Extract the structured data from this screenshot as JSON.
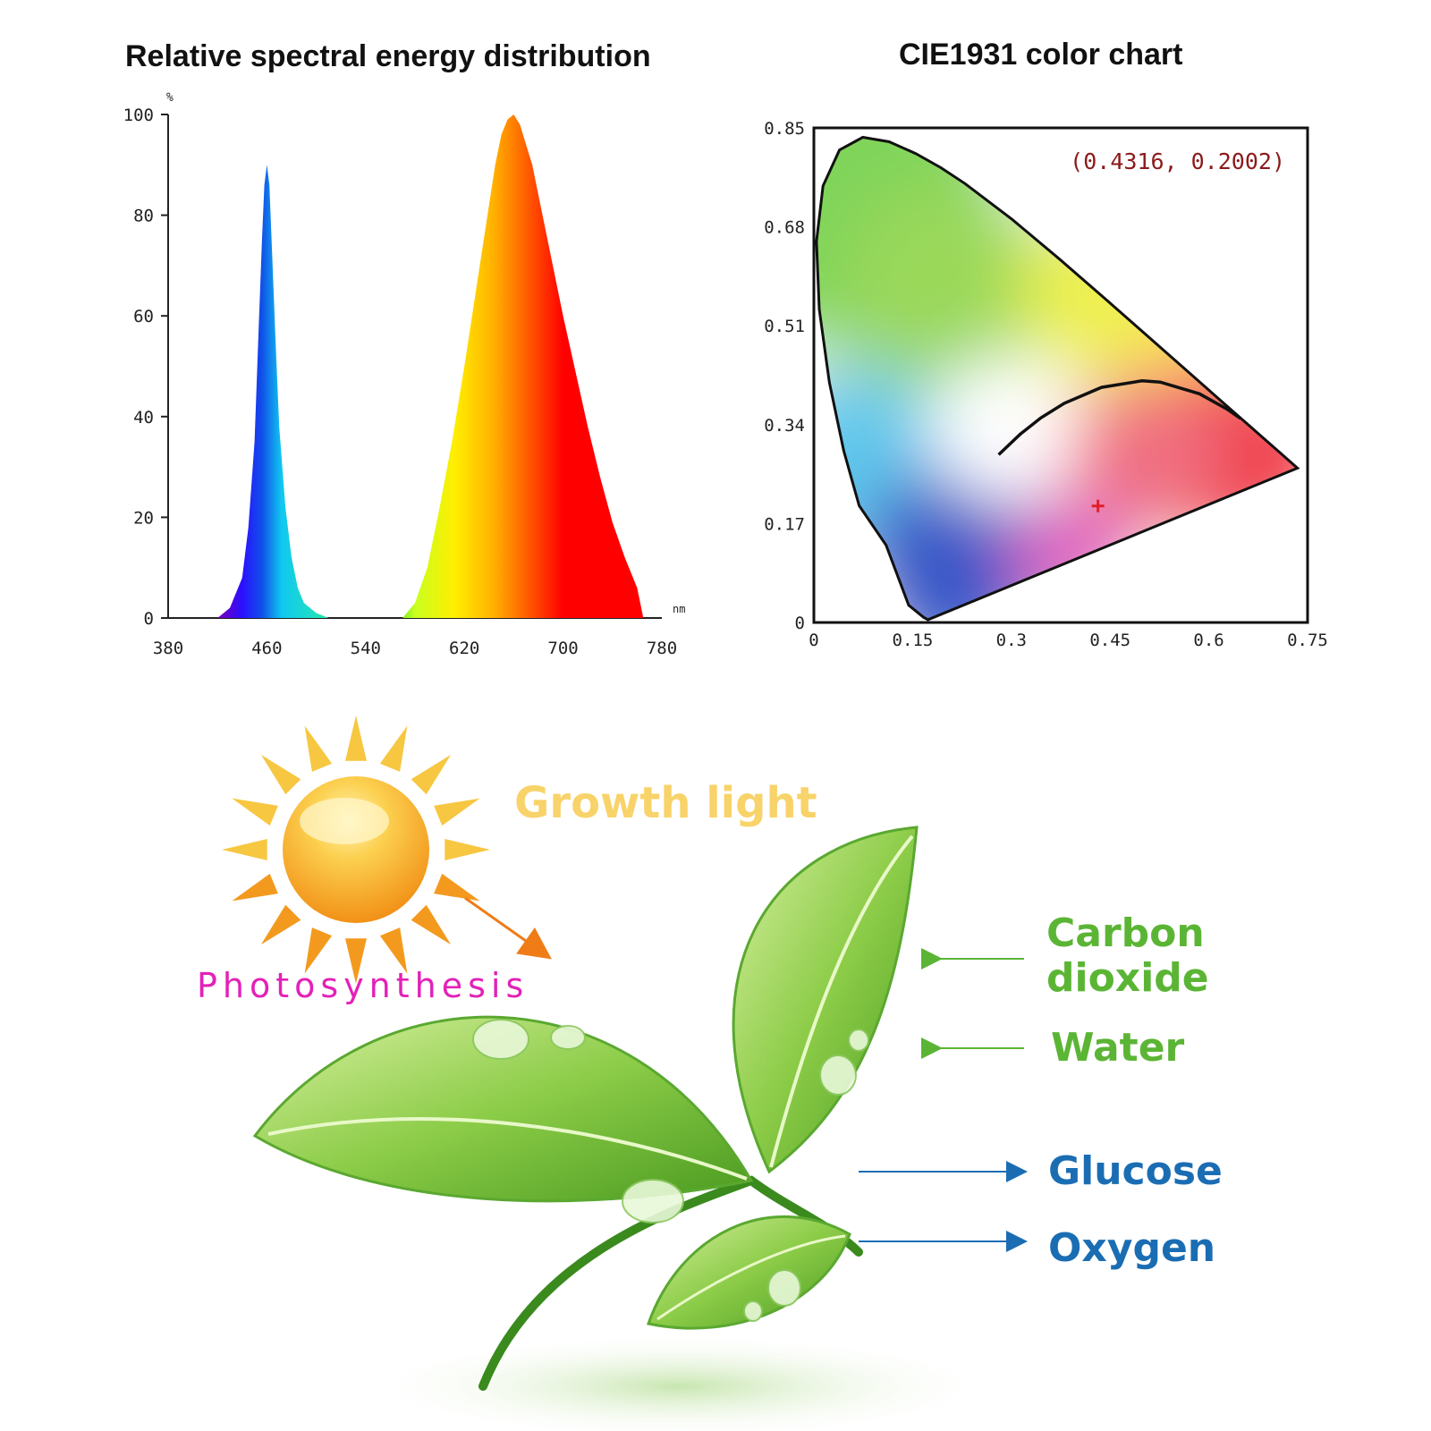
{
  "chart_data": [
    {
      "type": "area",
      "title": "Relative spectral energy distribution",
      "ylabel": "%",
      "xlabel": "nm",
      "xlim": [
        380,
        780
      ],
      "ylim": [
        0,
        100
      ],
      "x_ticks": [
        "380",
        "460",
        "540",
        "620",
        "700",
        "780"
      ],
      "y_ticks": [
        "0",
        "20",
        "40",
        "60",
        "80",
        "100"
      ],
      "grid": false,
      "series": [
        {
          "x": [
            420,
            430,
            440,
            445,
            450,
            453,
            456,
            458,
            460,
            462,
            464,
            467,
            470,
            475,
            480,
            485,
            490,
            500,
            510
          ],
          "y": [
            0,
            2,
            8,
            18,
            35,
            55,
            75,
            86,
            90,
            86,
            74,
            55,
            38,
            22,
            12,
            6,
            3,
            1,
            0
          ]
        },
        {
          "x": [
            570,
            580,
            590,
            600,
            610,
            620,
            630,
            640,
            645,
            650,
            655,
            660,
            665,
            670,
            675,
            680,
            690,
            700,
            710,
            720,
            730,
            740,
            750,
            760,
            765
          ],
          "y": [
            0,
            3,
            10,
            22,
            35,
            50,
            66,
            82,
            90,
            96,
            99,
            100,
            98,
            94,
            90,
            84,
            72,
            60,
            49,
            38,
            28,
            19,
            12,
            6,
            0
          ]
        }
      ]
    },
    {
      "type": "scatter",
      "title": "CIE1931 color chart",
      "xlim": [
        0,
        0.75
      ],
      "ylim": [
        0,
        0.85
      ],
      "x_ticks": [
        "0",
        "0.15",
        "0.3",
        "0.45",
        "0.6",
        "0.75"
      ],
      "y_ticks": [
        "0",
        "0.17",
        "0.34",
        "0.51",
        "0.68",
        "0.85"
      ],
      "grid": false,
      "annotation": "(0.4316, 0.2002)",
      "point": {
        "x": 0.4316,
        "y": 0.2002,
        "color": "#e0202a"
      },
      "spectral_locus": {
        "x": [
          0.1741,
          0.1733,
          0.1666,
          0.144,
          0.1096,
          0.0687,
          0.0454,
          0.0235,
          0.0082,
          0.0039,
          0.0139,
          0.0389,
          0.0743,
          0.1142,
          0.1547,
          0.1929,
          0.2296,
          0.3016,
          0.3731,
          0.4441,
          0.5125,
          0.5752,
          0.627,
          0.6658,
          0.6915,
          0.7079,
          0.7347
        ],
        "y": [
          0.005,
          0.0048,
          0.0089,
          0.0297,
          0.1329,
          0.2007,
          0.295,
          0.4127,
          0.5384,
          0.6548,
          0.7502,
          0.812,
          0.8338,
          0.8262,
          0.8059,
          0.7816,
          0.7543,
          0.6923,
          0.6245,
          0.5547,
          0.4866,
          0.4242,
          0.3725,
          0.334,
          0.3083,
          0.292,
          0.2653
        ]
      },
      "planckian_locus": {
        "x": [
          0.2807,
          0.3135,
          0.3447,
          0.3805,
          0.4369,
          0.4985,
          0.5261,
          0.5857,
          0.6277,
          0.6482
        ],
        "y": [
          0.2883,
          0.3236,
          0.3516,
          0.3768,
          0.4041,
          0.4153,
          0.4131,
          0.3931,
          0.3666,
          0.3505
        ]
      }
    }
  ],
  "illustration": {
    "growth_light": "Growth light",
    "photosynthesis": "Photosynthesis",
    "inputs": [
      "Carbon",
      "dioxide",
      "Water"
    ],
    "outputs": [
      "Glucose",
      "Oxygen"
    ],
    "colors": {
      "growth_light": "#f8d36a",
      "photosynthesis": "#e321b8",
      "inputs": "#5bb535",
      "outputs": "#1b6db3",
      "sun": "#f7a21b",
      "leaf": "#7cc242"
    }
  }
}
